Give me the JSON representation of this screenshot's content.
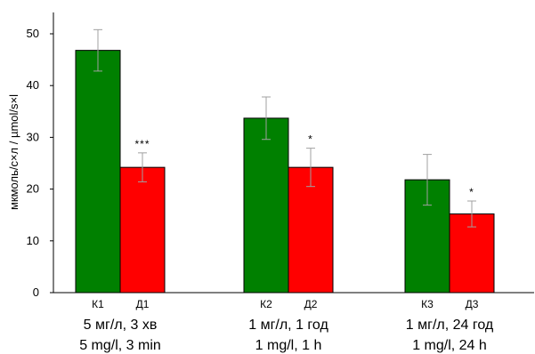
{
  "chart_data": {
    "type": "bar",
    "ylabel": "мкмоль/с×л / µmol/s×l",
    "ylim": [
      0,
      55
    ],
    "yticks": [
      0,
      10,
      20,
      30,
      40,
      50
    ],
    "grid": false,
    "legend": "none",
    "groups": [
      {
        "label_line1": "5 мг/л, 3 хв",
        "label_line2": "5 mg/l, 3 min",
        "bars": [
          {
            "label": "К1",
            "value": 46.8,
            "err": 4.0,
            "color": "#008000",
            "sig": ""
          },
          {
            "label": "Д1",
            "value": 24.2,
            "err": 2.8,
            "color": "#ff0000",
            "sig": "***"
          }
        ]
      },
      {
        "label_line1": "1 мг/л, 1 год",
        "label_line2": "1 mg/l, 1 h",
        "bars": [
          {
            "label": "К2",
            "value": 33.7,
            "err": 4.1,
            "color": "#008000",
            "sig": ""
          },
          {
            "label": "Д2",
            "value": 24.2,
            "err": 3.7,
            "color": "#ff0000",
            "sig": "*"
          }
        ]
      },
      {
        "label_line1": "1 мг/л, 24 год",
        "label_line2": "1 mg/l, 24 h",
        "bars": [
          {
            "label": "К3",
            "value": 21.8,
            "err": 4.9,
            "color": "#008000",
            "sig": ""
          },
          {
            "label": "Д3",
            "value": 15.2,
            "err": 2.5,
            "color": "#ff0000",
            "sig": "*"
          }
        ]
      }
    ]
  }
}
